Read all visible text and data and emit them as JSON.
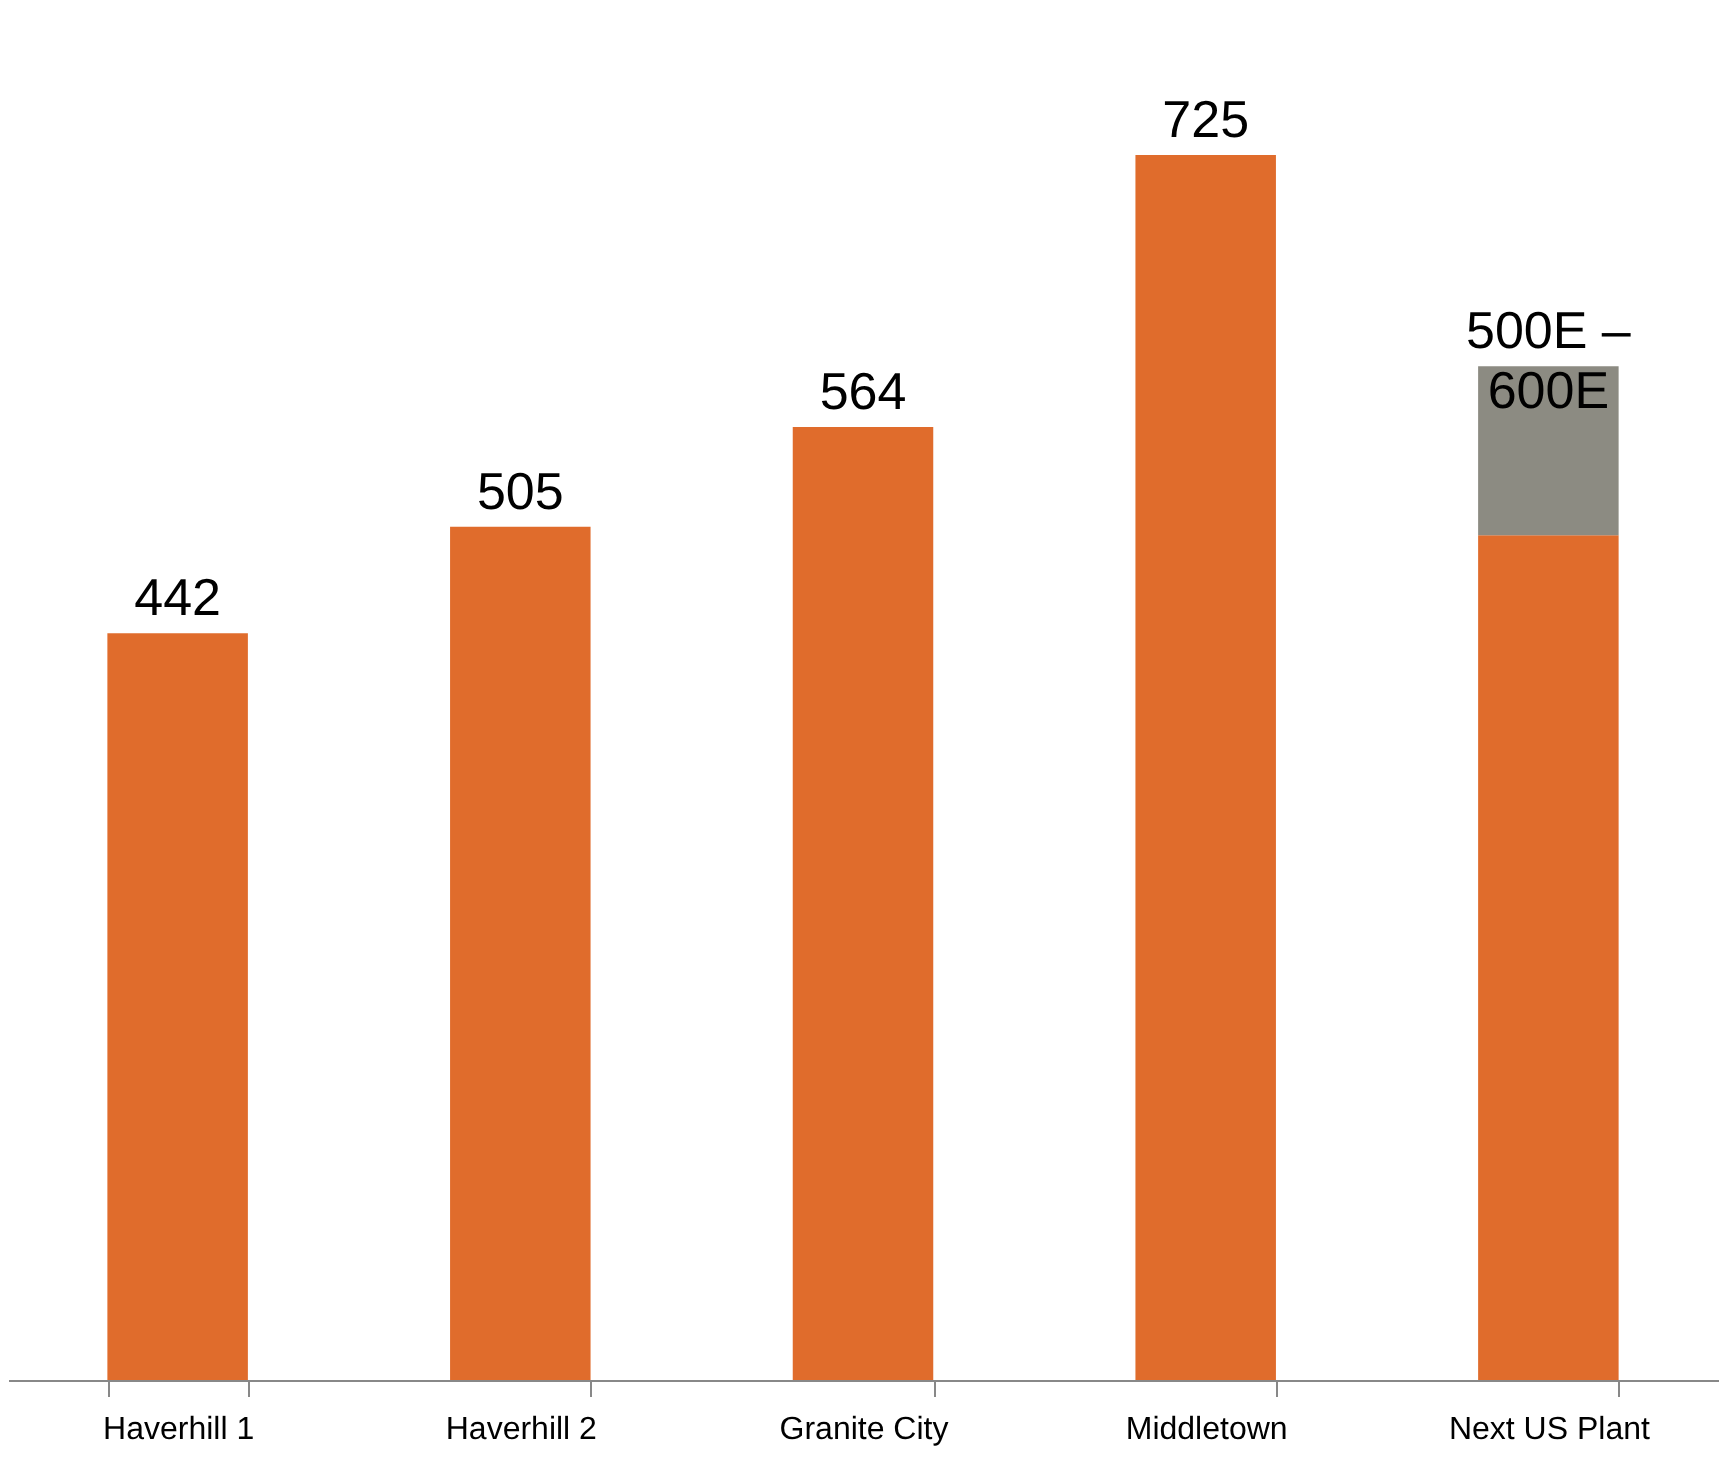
{
  "chart_data": {
    "type": "bar",
    "stacked": true,
    "categories": [
      "Haverhill 1",
      "Haverhill 2",
      "Granite City",
      "Middletown",
      "Next US Plant"
    ],
    "series": [
      {
        "color": "#e06c2c",
        "values": [
          442,
          505,
          564,
          725,
          500
        ],
        "value_labels": [
          "442",
          "505",
          "564",
          "725",
          null
        ]
      },
      {
        "color": "#8c8b82",
        "values": [
          null,
          null,
          null,
          null,
          100
        ]
      }
    ],
    "totals": [
      null,
      null,
      null,
      null,
      "500E – 600E"
    ],
    "tick_labels": "x",
    "grid": false
  }
}
